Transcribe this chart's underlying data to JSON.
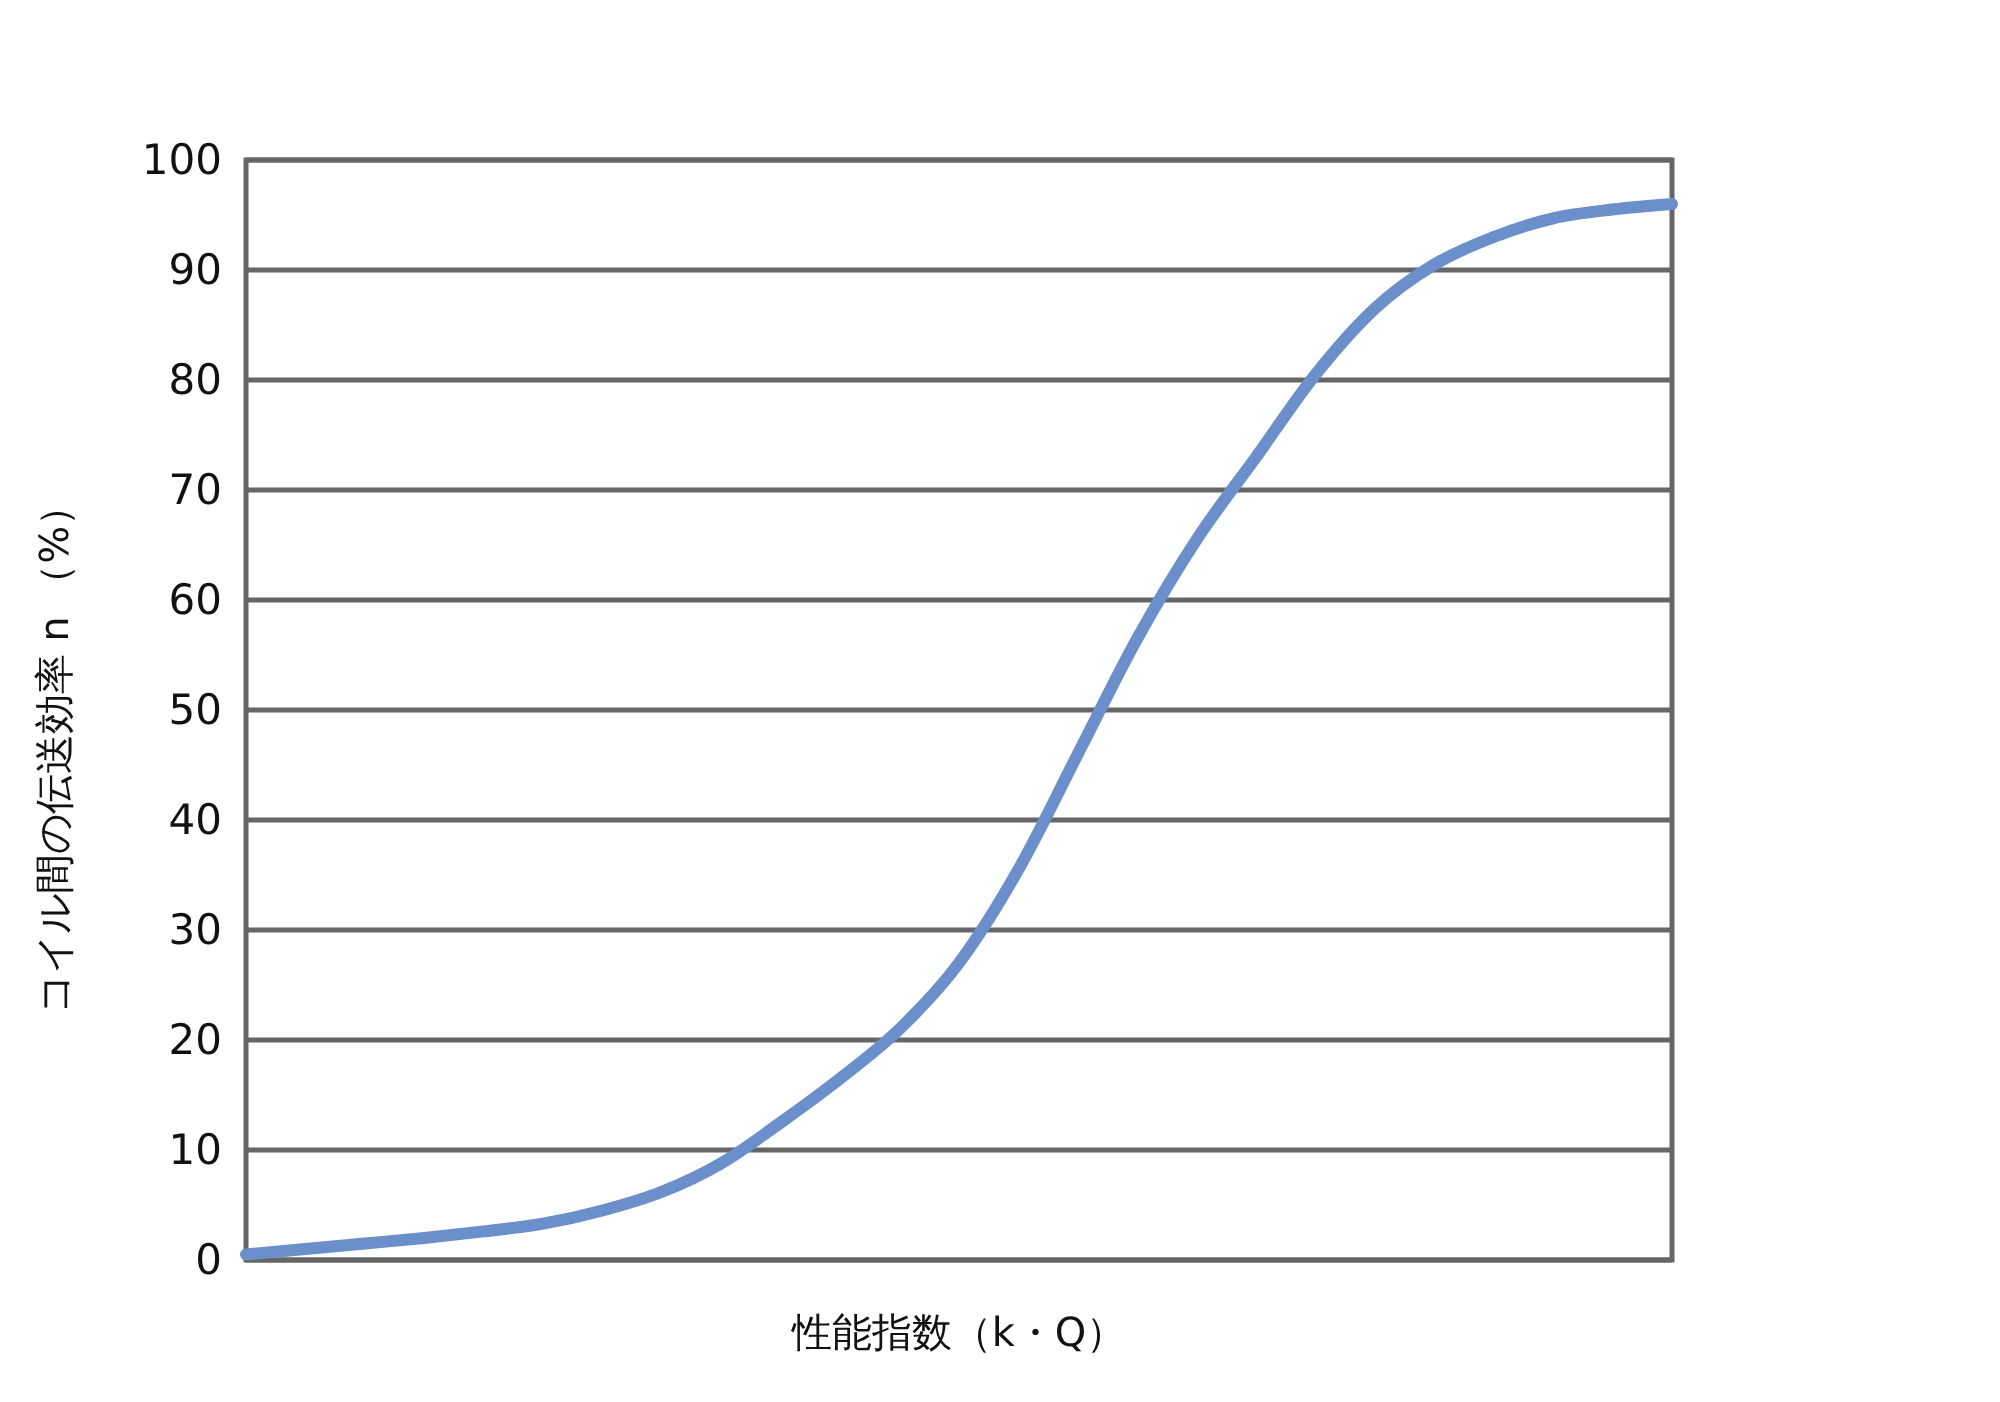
{
  "chart_data": {
    "type": "line",
    "xlabel": "性能指数（k・Q）",
    "ylabel": "コイル間の伝送効率 n （%）",
    "categories": [
      null,
      null,
      null,
      null,
      null,
      null,
      null,
      null,
      null,
      null,
      null,
      null,
      null,
      null,
      null,
      null,
      null,
      null,
      null,
      null,
      null,
      null,
      null,
      null,
      null
    ],
    "series": [
      {
        "color": "#6a8fcb",
        "values": [
          0.5,
          1.0,
          1.5,
          2.0,
          2.6,
          3.3,
          4.5,
          6.2,
          8.8,
          12.5,
          16.5,
          21,
          27,
          35.5,
          46,
          56.5,
          65.5,
          73,
          80.5,
          86.5,
          90.5,
          93,
          94.7,
          95.5,
          96
        ]
      }
    ],
    "ylim": [
      0,
      100
    ],
    "yticks": [
      0,
      10,
      20,
      30,
      40,
      50,
      60,
      70,
      80,
      90,
      100
    ],
    "grid": "y",
    "marker": "none",
    "line_style": "solid"
  }
}
